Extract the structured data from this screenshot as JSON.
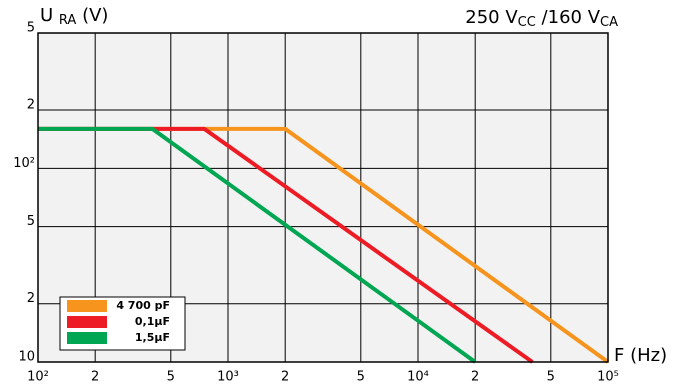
{
  "chart_data": {
    "type": "line",
    "y_label": {
      "main": "U",
      "sub": "RA",
      "unit": "(V)"
    },
    "annotation": {
      "parts": [
        "250 V",
        "CC",
        " /160 V",
        "CA"
      ]
    },
    "x_label": "F (Hz)",
    "log_x": true,
    "log_y": true,
    "grid": true,
    "legend": "lower left",
    "xlim": [
      100,
      100000
    ],
    "ylim": [
      10,
      500
    ],
    "xticks": [
      {
        "value": 100,
        "label": "10²"
      },
      {
        "value": 200,
        "label": "2"
      },
      {
        "value": 500,
        "label": "5"
      },
      {
        "value": 1000,
        "label": "10³"
      },
      {
        "value": 2000,
        "label": "2"
      },
      {
        "value": 5000,
        "label": "5"
      },
      {
        "value": 10000,
        "label": "10⁴"
      },
      {
        "value": 20000,
        "label": "2"
      },
      {
        "value": 50000,
        "label": "5"
      },
      {
        "value": 100000,
        "label": "10⁵"
      }
    ],
    "yticks": [
      10,
      {
        "value": 20,
        "label": "2"
      },
      {
        "value": 50,
        "label": "5"
      },
      {
        "value": 100,
        "label": "10²"
      },
      {
        "value": 200,
        "label": "2"
      },
      {
        "value": 500,
        "label": "5"
      }
    ],
    "series": [
      {
        "name": "4 700 pF",
        "color": "#f7941d",
        "x": [
          100,
          2000,
          100000
        ],
        "values": [
          160,
          160,
          10
        ]
      },
      {
        "name": "0,1µF",
        "color": "#ed1c24",
        "x": [
          100,
          750,
          40000
        ],
        "values": [
          160,
          160,
          10
        ]
      },
      {
        "name": "1,5µF",
        "color": "#00a651",
        "x": [
          100,
          400,
          20000
        ],
        "values": [
          160,
          160,
          10
        ]
      }
    ]
  }
}
